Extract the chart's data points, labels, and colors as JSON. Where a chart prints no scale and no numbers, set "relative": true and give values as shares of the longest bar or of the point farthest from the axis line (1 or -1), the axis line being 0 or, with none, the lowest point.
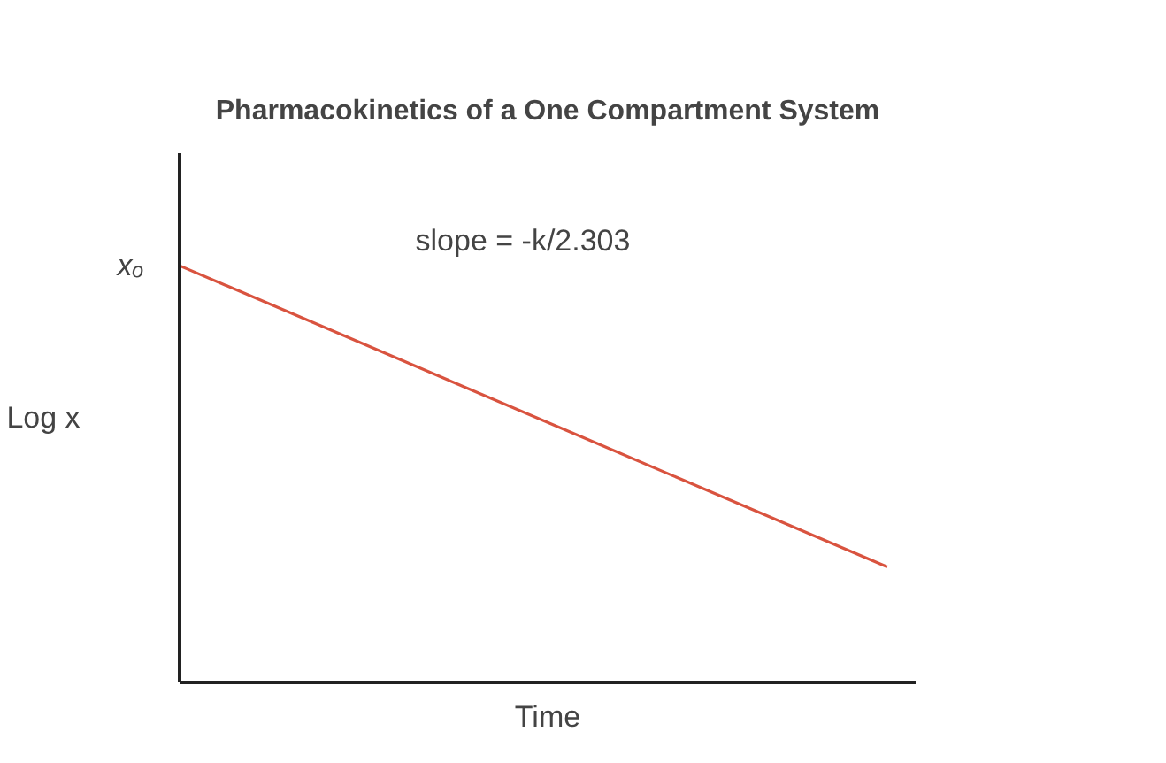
{
  "chart_data": {
    "type": "line",
    "title": "Pharmacokinetics of a One Compartment System",
    "xlabel": "Time",
    "ylabel": "Log x",
    "relative": true,
    "categories": [
      null,
      null
    ],
    "series": [
      {
        "color": "#d9533f",
        "values": [
          1,
          0.277
        ]
      }
    ],
    "annotations": [
      "xₒ",
      "slope = -k/2.303"
    ]
  }
}
